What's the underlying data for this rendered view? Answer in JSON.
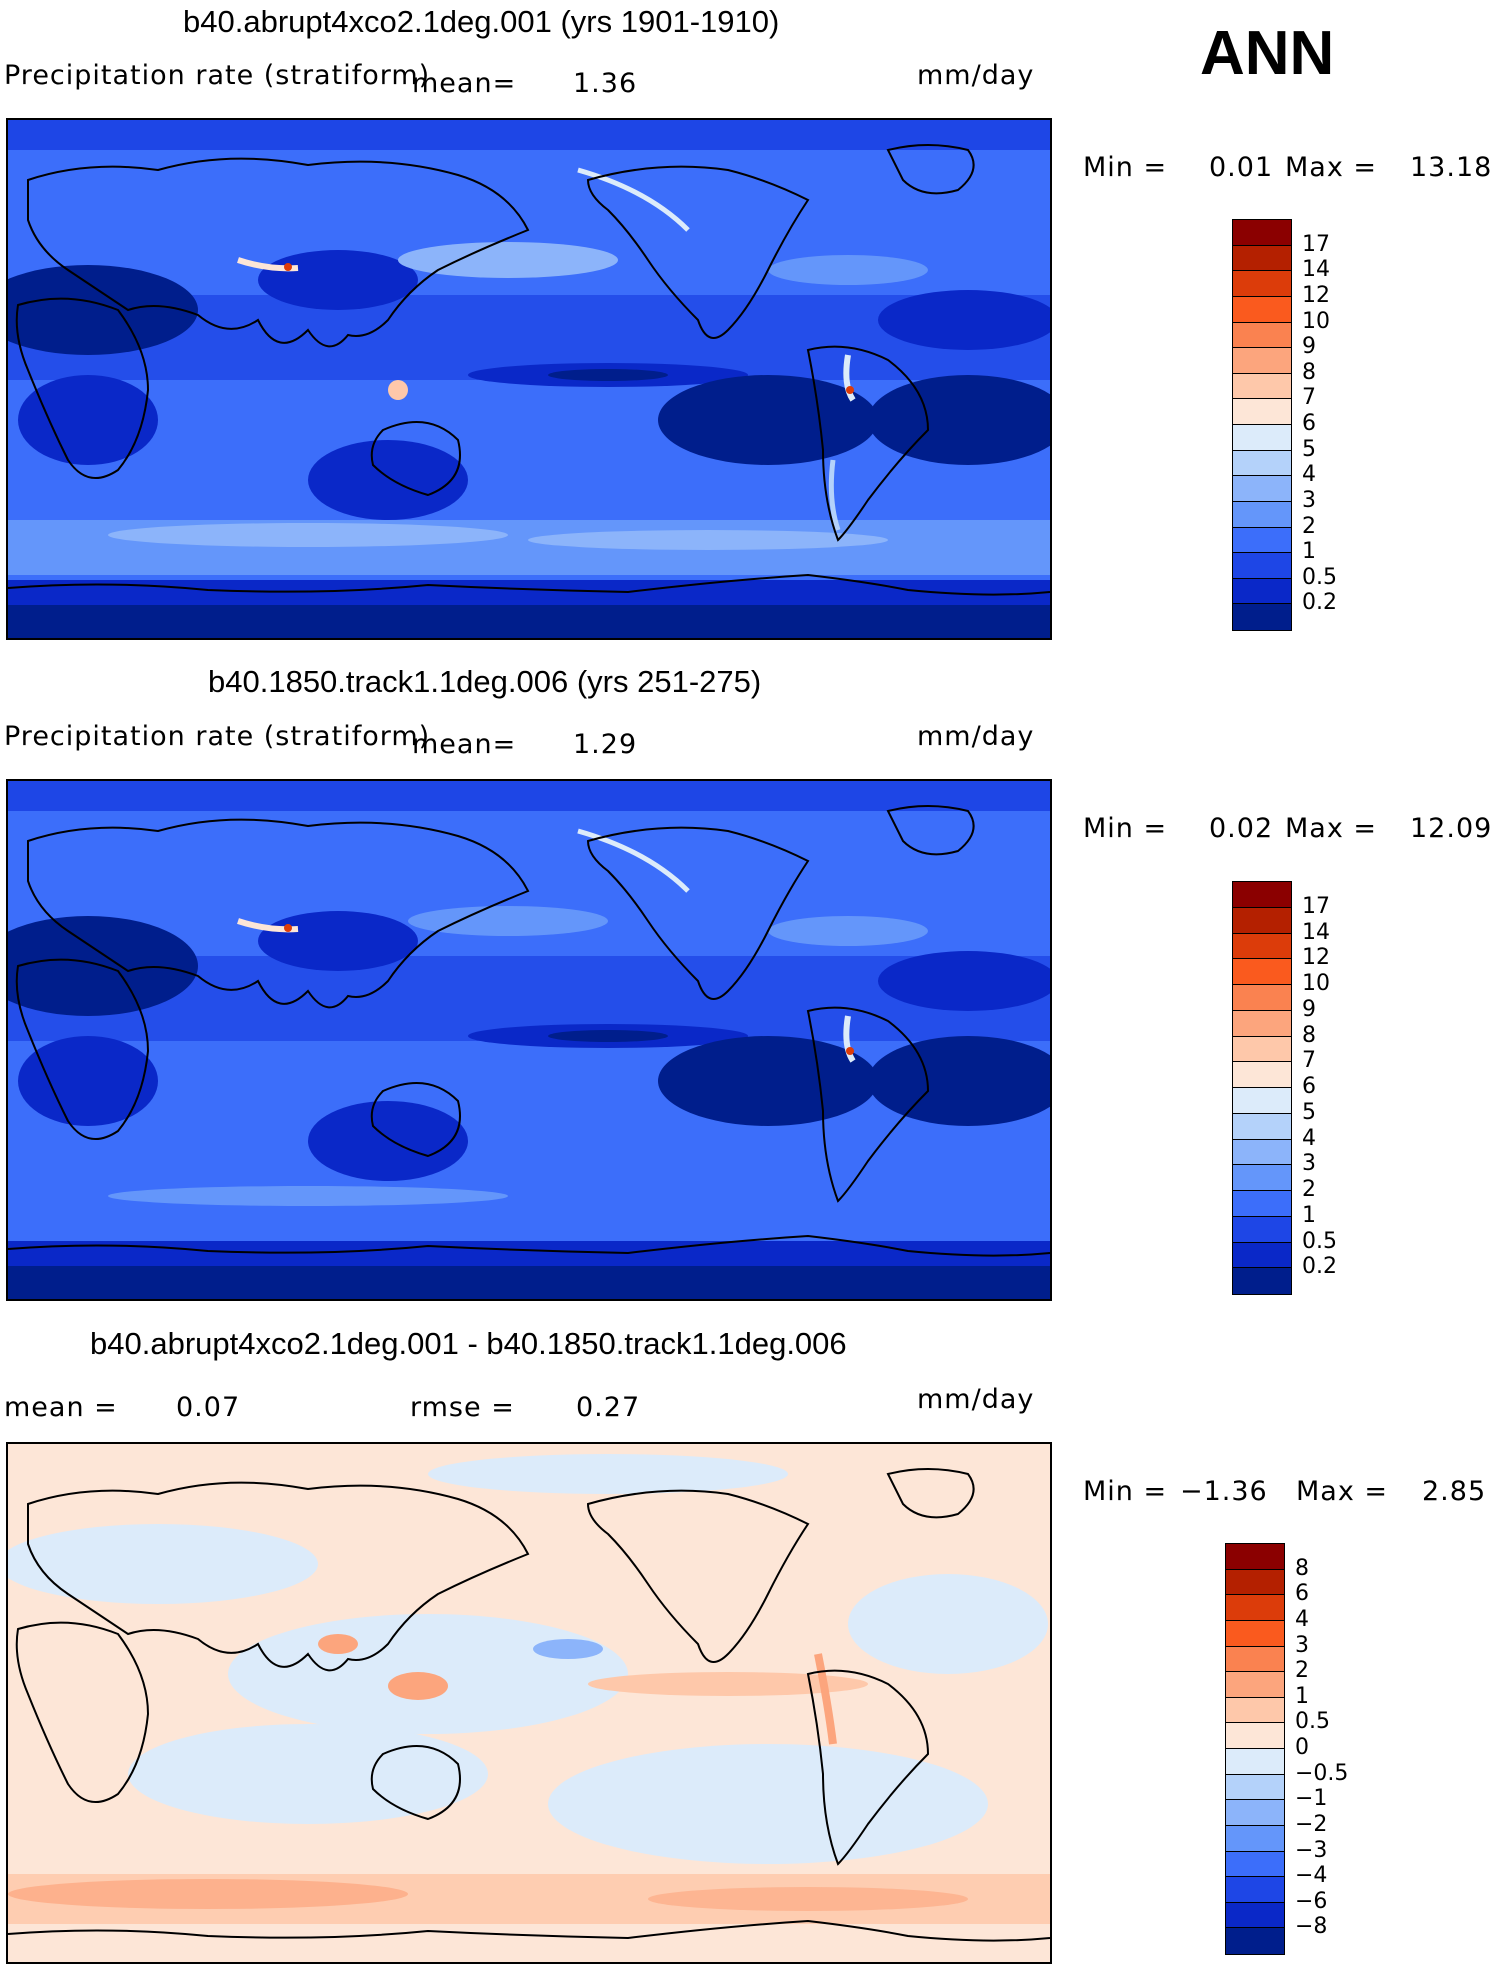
{
  "season": "ANN",
  "units": "mm/day",
  "panel1": {
    "title": "b40.abrupt4xco2.1deg.001 (yrs 1901-1910)",
    "field": "Precipitation rate (stratiform)",
    "mean_label": "mean=",
    "mean": "1.36",
    "min_label": "Min =",
    "min": "0.01",
    "max_label": "Max =",
    "max": "13.18"
  },
  "panel2": {
    "title": "b40.1850.track1.1deg.006 (yrs 251-275)",
    "field": "Precipitation rate (stratiform)",
    "mean_label": "mean=",
    "mean": "1.29",
    "min_label": "Min =",
    "min": "0.02",
    "max_label": "Max =",
    "max": "12.09"
  },
  "panel3": {
    "title": "b40.abrupt4xco2.1deg.001 - b40.1850.track1.1deg.006",
    "mean_label": "mean =",
    "mean": "0.07",
    "rmse_label": "rmse =",
    "rmse": "0.27",
    "min_label": "Min =",
    "min": "−1.36",
    "max_label": "Max =",
    "max": "2.85"
  },
  "colorbar_abs": {
    "levels": [
      "17",
      "14",
      "12",
      "10",
      "9",
      "8",
      "7",
      "6",
      "5",
      "4",
      "3",
      "2",
      "1",
      "0.5",
      "0.2"
    ],
    "colors": [
      "#8b0000",
      "#b42000",
      "#dc3c0a",
      "#fa5a1e",
      "#fa8250",
      "#fca57d",
      "#fec8aa",
      "#fde6d7",
      "#dcebfa",
      "#b4d2fa",
      "#8cb4fa",
      "#6496fa",
      "#3c6efa",
      "#1e46e6",
      "#0a28c8",
      "#001e8c"
    ]
  },
  "colorbar_diff": {
    "levels": [
      "8",
      "6",
      "4",
      "3",
      "2",
      "1",
      "0.5",
      "0",
      "−0.5",
      "−1",
      "−2",
      "−3",
      "−4",
      "−6",
      "−8"
    ],
    "colors": [
      "#8b0000",
      "#b42000",
      "#dc3c0a",
      "#fa5a1e",
      "#fa8250",
      "#fca57d",
      "#fec8aa",
      "#fde6d7",
      "#dcebfa",
      "#b4d2fa",
      "#8cb4fa",
      "#6496fa",
      "#3c6efa",
      "#1e46e6",
      "#0a28c8",
      "#001e8c"
    ]
  }
}
